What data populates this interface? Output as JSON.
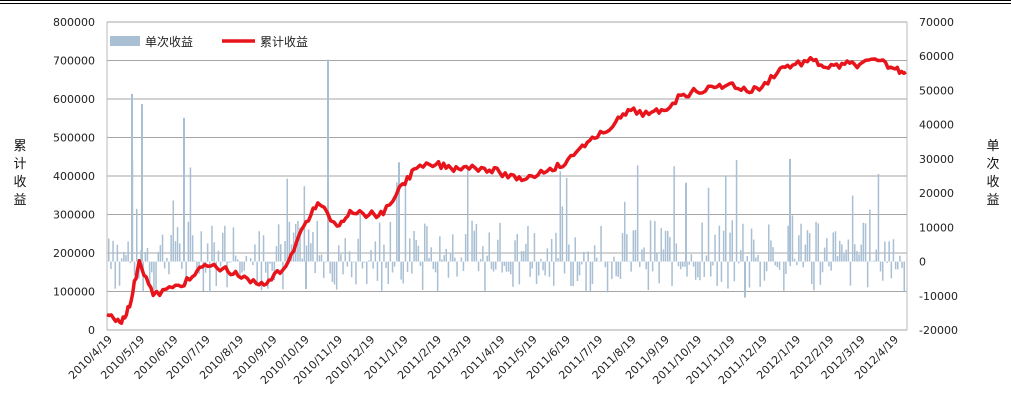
{
  "chart_data": {
    "type": "bar+line",
    "title": "",
    "legend_position": "top-left",
    "grid": true,
    "left_axis": {
      "label": "累计收益",
      "range": [
        0,
        800000
      ],
      "ticks": [
        "0",
        "100000",
        "200000",
        "300000",
        "400000",
        "500000",
        "600000",
        "700000",
        "800000"
      ]
    },
    "right_axis": {
      "label": "单次收益",
      "range": [
        -20000,
        70000
      ],
      "ticks": [
        "-20000",
        "-10000",
        "0",
        "10000",
        "20000",
        "30000",
        "40000",
        "50000",
        "60000",
        "70000"
      ]
    },
    "x_tick_labels": [
      "2010/4/19",
      "2010/5/19",
      "2010/6/19",
      "2010/7/19",
      "2010/8/19",
      "2010/9/19",
      "2010/10/19",
      "2010/11/19",
      "2010/12/19",
      "2011/1/19",
      "2011/2/19",
      "2011/3/19",
      "2011/4/19",
      "2011/5/19",
      "2011/6/19",
      "2011/7/19",
      "2011/8/19",
      "2011/9/19",
      "2011/10/19",
      "2011/11/19",
      "2011/12/19",
      "2012/1/19",
      "2012/2/19",
      "2012/3/19",
      "2012/4/19"
    ],
    "series": [
      {
        "name": "单次收益",
        "kind": "bar",
        "axis": "right",
        "color": "#a8bfd4",
        "note": "daily single-trade returns, approx. -13000 to 60000"
      },
      {
        "name": "累计收益",
        "kind": "line",
        "axis": "left",
        "color": "#e8141b",
        "x": [
          "2010/4/19",
          "2010/5/1",
          "2010/5/10",
          "2010/5/19",
          "2010/6/1",
          "2010/6/19",
          "2010/7/5",
          "2010/7/19",
          "2010/8/5",
          "2010/8/19",
          "2010/9/5",
          "2010/9/19",
          "2010/10/5",
          "2010/10/19",
          "2010/11/1",
          "2010/11/19",
          "2010/12/1",
          "2010/12/19",
          "2011/1/1",
          "2011/1/19",
          "2011/2/1",
          "2011/2/19",
          "2011/3/5",
          "2011/3/19",
          "2011/4/5",
          "2011/4/19",
          "2011/5/5",
          "2011/5/19",
          "2011/6/5",
          "2011/6/19",
          "2011/7/5",
          "2011/7/19",
          "2011/8/5",
          "2011/8/19",
          "2011/9/5",
          "2011/9/19",
          "2011/10/5",
          "2011/10/19",
          "2011/11/5",
          "2011/11/19",
          "2011/12/5",
          "2011/12/19",
          "2012/1/5",
          "2012/1/19",
          "2012/2/5",
          "2012/2/19",
          "2012/3/5",
          "2012/3/19",
          "2012/4/5",
          "2012/4/19",
          "2012/5/1"
        ],
        "values": [
          40000,
          20000,
          60000,
          180000,
          90000,
          110000,
          130000,
          170000,
          160000,
          140000,
          120000,
          130000,
          180000,
          270000,
          330000,
          270000,
          310000,
          300000,
          300000,
          380000,
          420000,
          430000,
          420000,
          425000,
          420000,
          410000,
          390000,
          400000,
          420000,
          430000,
          480000,
          500000,
          540000,
          570000,
          560000,
          570000,
          610000,
          620000,
          630000,
          640000,
          620000,
          630000,
          680000,
          690000,
          700000,
          680000,
          690000,
          690000,
          700000,
          680000,
          670000
        ]
      }
    ]
  }
}
